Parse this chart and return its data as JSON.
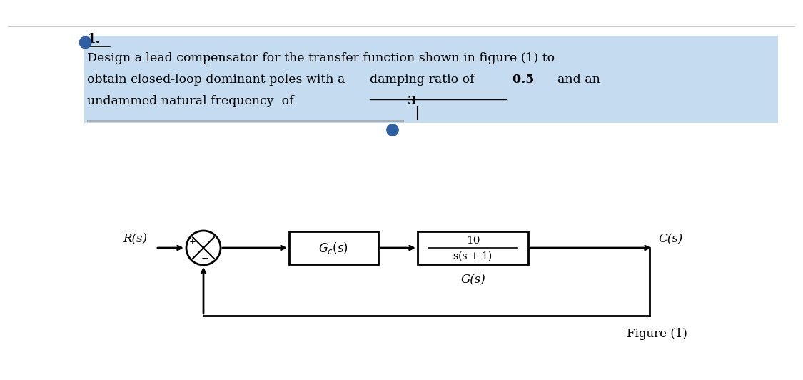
{
  "page_bg": "#ffffff",
  "title_number": "1.",
  "line1": "Design a lead compensator for the transfer function shown in figure (1) to",
  "line2_part1": "obtain closed-loop dominant poles with a ",
  "line2_underline": "damping ratio of",
  "line2_bold": " 0.5",
  "line2_end": "  and an",
  "line3_underline": "undammed natural frequency  of",
  "line3_bold": " 3",
  "Rs_label": "R(s)",
  "Cs_label": "C(s)",
  "G_num": "10",
  "G_den": "s(s + 1)",
  "G_label": "G(s)",
  "figure_label": "Figure (1)",
  "highlight_color": "#5b9bd5",
  "text_color": "#000000",
  "box_color": "#000000",
  "arrow_color": "#000000",
  "dot_color": "#2e5fa3",
  "top_line_color": "#bbbbbb"
}
